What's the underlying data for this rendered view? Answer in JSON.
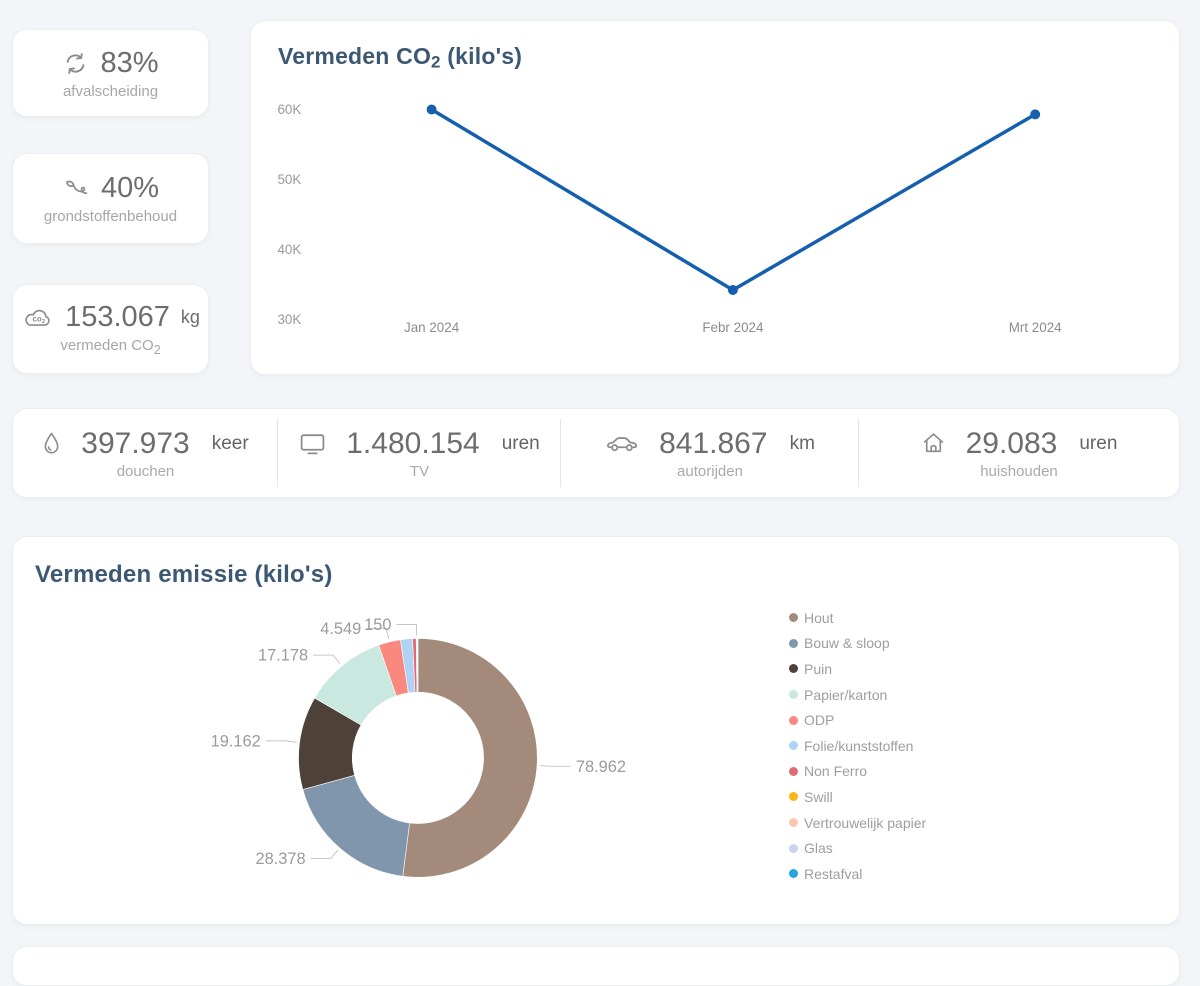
{
  "colors": {
    "background": "#f4f5f8",
    "card": "#ffffff",
    "title_navy": "#3d5873",
    "line_blue": "#155fae",
    "value_gray": "#6e6d6d",
    "sublabel_gray": "#a6a6a6",
    "axis_gray": "#9a9a9a",
    "legend_text_gray": "#9e9e9e",
    "donut_label_gray": "#9b9b9b"
  },
  "kpi_cards": [
    {
      "icon": "recycle-icon",
      "value": "83%",
      "unit": "",
      "label": "afvalscheiding",
      "label_sub": ""
    },
    {
      "icon": "sprout-icon",
      "value": "40%",
      "unit": "",
      "label": "grondstoffenbehoud",
      "label_sub": ""
    },
    {
      "icon": "co2-cloud-icon",
      "value": "153.067",
      "unit": "kg",
      "label": "vermeden CO",
      "label_sub": "2"
    }
  ],
  "co2_chart": {
    "title_pre": "Vermeden CO",
    "title_sub": "2",
    "title_post": " (kilo's)"
  },
  "stats": [
    {
      "icon": "droplet-icon",
      "value": "397.973",
      "unit": "keer",
      "label": "douchen"
    },
    {
      "icon": "tv-icon",
      "value": "1.480.154",
      "unit": "uren",
      "label": "TV"
    },
    {
      "icon": "car-icon",
      "value": "841.867",
      "unit": "km",
      "label": "autorijden"
    },
    {
      "icon": "house-icon",
      "value": "29.083",
      "unit": "uren",
      "label": "huishouden"
    }
  ],
  "emission_chart": {
    "title": "Vermeden emissie (kilo's)"
  },
  "chart_data": [
    {
      "type": "line",
      "title": "Vermeden CO2 (kilo's)",
      "x": [
        "Jan 2024",
        "Febr 2024",
        "Mrt 2024"
      ],
      "values": [
        60000,
        34200,
        59300
      ],
      "ytick_labels": [
        "60K",
        "50K",
        "40K",
        "30K"
      ],
      "ytick_values": [
        60000,
        50000,
        40000,
        30000
      ],
      "ylim": [
        30000,
        60000
      ],
      "grid": false,
      "line_color": "#155fae"
    },
    {
      "type": "pie",
      "donut": true,
      "title": "Vermeden emissie (kilo's)",
      "legend_position": "right",
      "series": [
        {
          "name": "Hout",
          "value": 78962,
          "color": "#a48a7b"
        },
        {
          "name": "Bouw & sloop",
          "value": 28378,
          "color": "#8096ad"
        },
        {
          "name": "Puin",
          "value": 19162,
          "color": "#4e4137"
        },
        {
          "name": "Papier/karton",
          "value": 17178,
          "color": "#c9e8e0"
        },
        {
          "name": "ODP",
          "value": 4549,
          "color": "#f9897f"
        },
        {
          "name": "Folie/kunststoffen",
          "value": 2466,
          "color": "#b0d2f4"
        },
        {
          "name": "Non Ferro",
          "value": 723,
          "color": "#e06a78"
        },
        {
          "name": "Swill",
          "value": 150,
          "color": "#fdb515"
        },
        {
          "name": "Vertrouwelijk papier",
          "value": 100,
          "color": "#fac7ae"
        },
        {
          "name": "Glas",
          "value": 60,
          "color": "#c7d3ef"
        },
        {
          "name": "Restafval",
          "value": 40,
          "color": "#28a4e0"
        }
      ],
      "labels_shown": [
        "Hout",
        "Bouw & sloop",
        "Puin",
        "Papier/karton",
        "ODP",
        "Swill"
      ]
    }
  ]
}
